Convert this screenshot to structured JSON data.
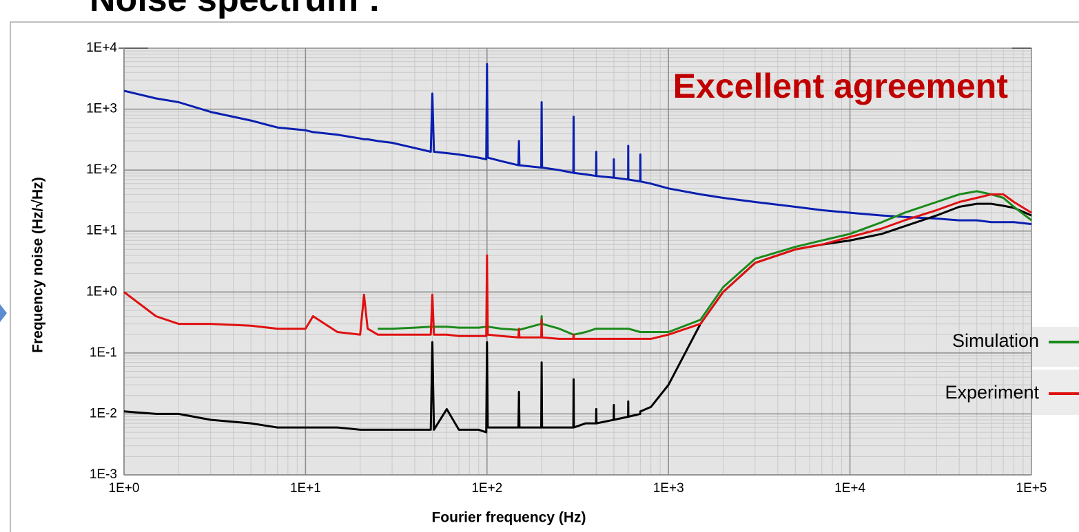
{
  "chart_data": {
    "type": "line",
    "title": "Noise spectrum :",
    "annotation": "Excellent agreement",
    "xlabel": "Fourier frequency (Hz)",
    "ylabel": "Frequency noise (Hz/√Hz)",
    "log_x": true,
    "log_y": true,
    "grid": true,
    "legend": "right",
    "xlim": [
      1,
      100000
    ],
    "ylim": [
      0.001,
      10000
    ],
    "xticks": [
      {
        "value": 1,
        "label": "1E+0"
      },
      {
        "value": 10,
        "label": "1E+1"
      },
      {
        "value": 100,
        "label": "1E+2"
      },
      {
        "value": 1000,
        "label": "1E+3"
      },
      {
        "value": 10000,
        "label": "1E+4"
      },
      {
        "value": 100000,
        "label": "1E+5"
      }
    ],
    "yticks": [
      {
        "value": 0.001,
        "label": "1E-3"
      },
      {
        "value": 0.01,
        "label": "1E-2"
      },
      {
        "value": 0.1,
        "label": "1E-1"
      },
      {
        "value": 1,
        "label": "1E+0"
      },
      {
        "value": 10,
        "label": "1E+1"
      },
      {
        "value": 100,
        "label": "1E+2"
      },
      {
        "value": 1000,
        "label": "1E+3"
      },
      {
        "value": 10000,
        "label": "1E+4"
      }
    ],
    "x": [
      1,
      1.5,
      2,
      3,
      5,
      7,
      10,
      11,
      15,
      20,
      21,
      22,
      25,
      30,
      40,
      49,
      50,
      51,
      60,
      70,
      90,
      99,
      100,
      101,
      120,
      149,
      150,
      151,
      199,
      200,
      201,
      250,
      299,
      300,
      301,
      350,
      399,
      400,
      401,
      499,
      500,
      501,
      599,
      600,
      601,
      699,
      700,
      701,
      800,
      1000,
      1500,
      2000,
      3000,
      5000,
      7000,
      10000,
      15000,
      20000,
      30000,
      40000,
      50000,
      60000,
      70000,
      80000,
      100000
    ],
    "series": [
      {
        "color": "#0a1fb0",
        "values": [
          2000,
          1500,
          1300,
          900,
          650,
          500,
          450,
          420,
          380,
          330,
          320,
          320,
          300,
          280,
          230,
          200,
          1800,
          200,
          190,
          180,
          160,
          150,
          5500,
          160,
          140,
          120,
          300,
          120,
          110,
          1300,
          110,
          100,
          90,
          750,
          90,
          85,
          80,
          200,
          80,
          75,
          150,
          75,
          70,
          250,
          70,
          65,
          180,
          65,
          60,
          50,
          40,
          35,
          30,
          25,
          22,
          20,
          18,
          17,
          16,
          15,
          15,
          14,
          14,
          14,
          13
        ]
      },
      {
        "color": "#000000",
        "values": [
          0.011,
          0.01,
          0.01,
          0.008,
          0.007,
          0.006,
          0.006,
          0.006,
          0.006,
          0.0055,
          0.0055,
          0.0055,
          0.0055,
          0.0055,
          0.0055,
          0.0055,
          0.15,
          0.0055,
          0.012,
          0.0055,
          0.0055,
          0.005,
          0.15,
          0.006,
          0.006,
          0.006,
          0.023,
          0.006,
          0.006,
          0.07,
          0.006,
          0.006,
          0.006,
          0.037,
          0.006,
          0.007,
          0.007,
          0.012,
          0.007,
          0.008,
          0.014,
          0.008,
          0.009,
          0.016,
          0.009,
          0.01,
          0.011,
          0.011,
          0.013,
          0.03,
          0.3,
          1,
          3,
          5,
          6,
          7,
          9,
          12,
          18,
          25,
          28,
          28,
          26,
          24,
          18
        ]
      },
      {
        "name": "Simulation",
        "color": "#1a8a1a",
        "values": [
          null,
          null,
          null,
          null,
          null,
          null,
          null,
          null,
          null,
          null,
          null,
          null,
          0.25,
          0.25,
          0.26,
          0.27,
          0.27,
          0.27,
          0.27,
          0.26,
          0.26,
          0.27,
          0.27,
          0.27,
          0.25,
          0.24,
          0.24,
          0.24,
          0.3,
          0.4,
          0.3,
          0.25,
          0.2,
          0.2,
          0.2,
          0.22,
          0.25,
          0.25,
          0.25,
          0.25,
          0.25,
          0.25,
          0.25,
          0.25,
          0.25,
          0.22,
          0.22,
          0.22,
          0.22,
          0.22,
          0.35,
          1.2,
          3.5,
          5.5,
          7,
          9,
          14,
          20,
          30,
          40,
          45,
          40,
          35,
          25,
          15
        ]
      },
      {
        "name": "Experiment",
        "color": "#e01010",
        "values": [
          1,
          0.4,
          0.3,
          0.3,
          0.28,
          0.25,
          0.25,
          0.4,
          0.22,
          0.2,
          0.9,
          0.25,
          0.2,
          0.2,
          0.2,
          0.2,
          0.9,
          0.2,
          0.2,
          0.19,
          0.19,
          0.19,
          4,
          0.2,
          0.19,
          0.18,
          0.25,
          0.18,
          0.18,
          0.35,
          0.18,
          0.17,
          0.17,
          0.2,
          0.17,
          0.17,
          0.17,
          0.17,
          0.17,
          0.17,
          0.17,
          0.17,
          0.17,
          0.17,
          0.17,
          0.17,
          0.17,
          0.17,
          0.17,
          0.2,
          0.3,
          1,
          3,
          5,
          6,
          8,
          11,
          15,
          22,
          30,
          35,
          40,
          40,
          30,
          20
        ]
      }
    ]
  }
}
